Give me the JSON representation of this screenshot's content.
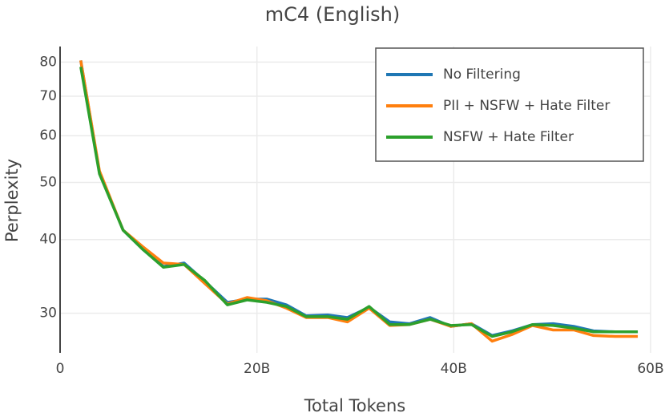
{
  "chart_data": {
    "type": "line",
    "title": "mC4 (English)",
    "x_label": "Total Tokens",
    "y_label": "Perplexity",
    "x": [
      2.1,
      4.0,
      6.4,
      8.4,
      10.5,
      12.6,
      14.7,
      17.0,
      19.0,
      21.0,
      23.0,
      25.0,
      27.2,
      29.2,
      31.4,
      33.5,
      35.5,
      37.6,
      39.7,
      41.8,
      43.9,
      45.9,
      48.0,
      50.1,
      52.2,
      54.2,
      56.4,
      58.7
    ],
    "series": [
      {
        "name": "No Filtering",
        "color": "#1f77b4",
        "values": [
          80.5,
          52,
          41.5,
          38.5,
          36,
          36.5,
          34,
          31.3,
          31.7,
          31.7,
          31,
          29.7,
          29.8,
          29.5,
          30.7,
          29,
          28.8,
          29.5,
          28.5,
          28.8,
          27.5,
          28,
          28.7,
          28.8,
          28.5,
          28,
          27.9,
          27.9
        ]
      },
      {
        "name": "PII + NSFW + Hate Filter",
        "color": "#ff7f0e",
        "values": [
          80.5,
          52.3,
          41.5,
          38.9,
          36.5,
          36.3,
          33.7,
          31.1,
          31.9,
          31.5,
          30.6,
          29.5,
          29.5,
          29,
          30.6,
          28.6,
          28.7,
          29.3,
          28.5,
          28.8,
          26.9,
          27.6,
          28.6,
          28.1,
          28.1,
          27.5,
          27.4,
          27.4
        ]
      },
      {
        "name": "NSFW + Hate Filter",
        "color": "#2ca02c",
        "values": [
          78.5,
          51.7,
          41.5,
          38.5,
          35.9,
          36.3,
          34.1,
          31,
          31.6,
          31.3,
          30.8,
          29.6,
          29.6,
          29.3,
          30.8,
          28.7,
          28.7,
          29.3,
          28.6,
          28.7,
          27.4,
          27.9,
          28.7,
          28.6,
          28.3,
          27.9,
          27.9,
          27.9
        ]
      }
    ],
    "xlim": [
      0,
      60
    ],
    "xticks": [
      0,
      {
        "value": 20,
        "label": "20B"
      },
      {
        "value": 40,
        "label": "40B"
      },
      {
        "value": 60,
        "label": "60B"
      }
    ],
    "ylim": [
      25.7,
      85
    ],
    "yticks": [
      30,
      40,
      50,
      60,
      70,
      80
    ],
    "y_scale": "log",
    "grid": true,
    "legend_position": "upper-right"
  }
}
